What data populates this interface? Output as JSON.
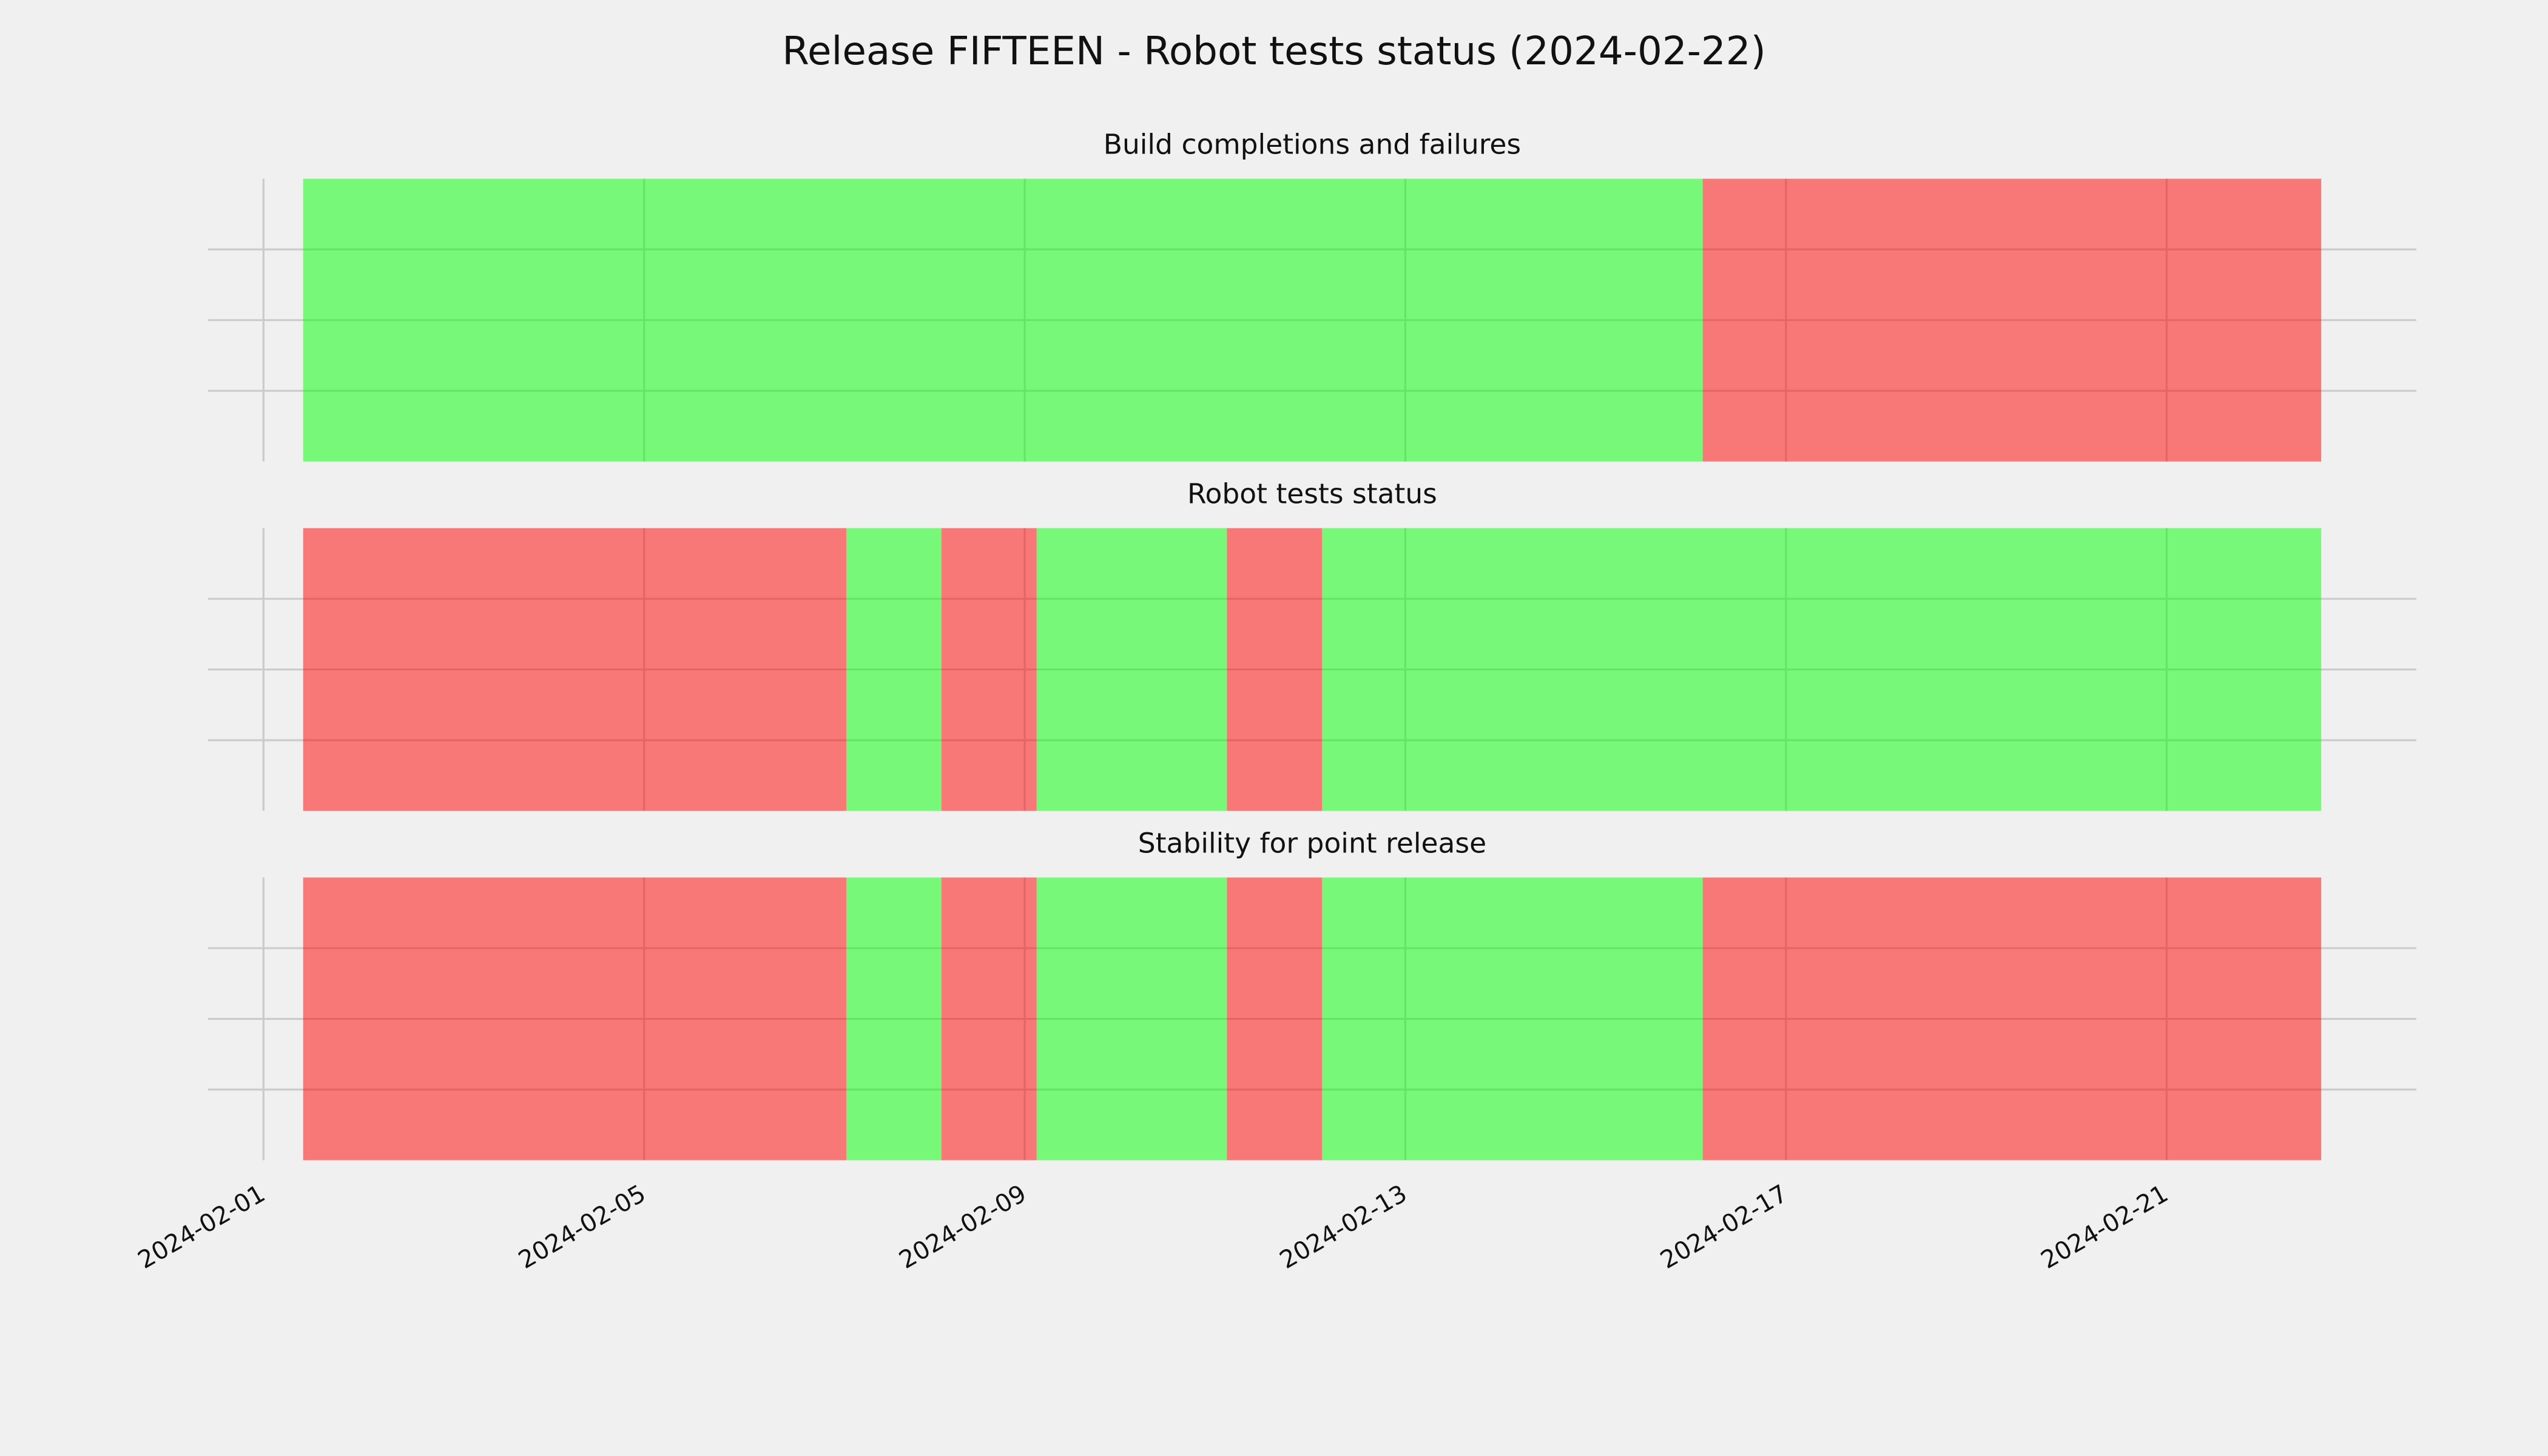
{
  "chart_data": {
    "type": "timeline",
    "title": "Release FIFTEEN - Robot tests status (2024-02-22)",
    "xlim": [
      "2024-01-31 10:00",
      "2024-02-23 15:00"
    ],
    "xticks": [
      "2024-02-01",
      "2024-02-05",
      "2024-02-09",
      "2024-02-13",
      "2024-02-17",
      "2024-02-21"
    ],
    "ylim": [
      0,
      1
    ],
    "yticks": [
      0.25,
      0.5,
      0.75
    ],
    "grid": true,
    "panels": [
      {
        "title": "Build completions and failures",
        "edges": [
          "2024-02-01 10:00",
          "2024-02-16 03:00",
          "2024-02-22 15:00"
        ],
        "colors": [
          "#00ff00",
          "#ff0000"
        ]
      },
      {
        "title": "Robot tests status",
        "edges": [
          "2024-02-01 10:00",
          "2024-02-07 03:00",
          "2024-02-08 03:00",
          "2024-02-09 03:00",
          "2024-02-11 03:00",
          "2024-02-12 03:00",
          "2024-02-22 15:00"
        ],
        "colors": [
          "#ff0000",
          "#00ff00",
          "#ff0000",
          "#00ff00",
          "#ff0000",
          "#00ff00"
        ]
      },
      {
        "title": "Stability for point release",
        "edges": [
          "2024-02-01 10:00",
          "2024-02-07 03:00",
          "2024-02-08 03:00",
          "2024-02-09 03:00",
          "2024-02-11 03:00",
          "2024-02-12 03:00",
          "2024-02-16 03:00",
          "2024-02-22 15:00"
        ],
        "colors": [
          "#ff0000",
          "#00ff00",
          "#ff0000",
          "#00ff00",
          "#ff0000",
          "#00ff00",
          "#ff0000"
        ]
      }
    ]
  }
}
